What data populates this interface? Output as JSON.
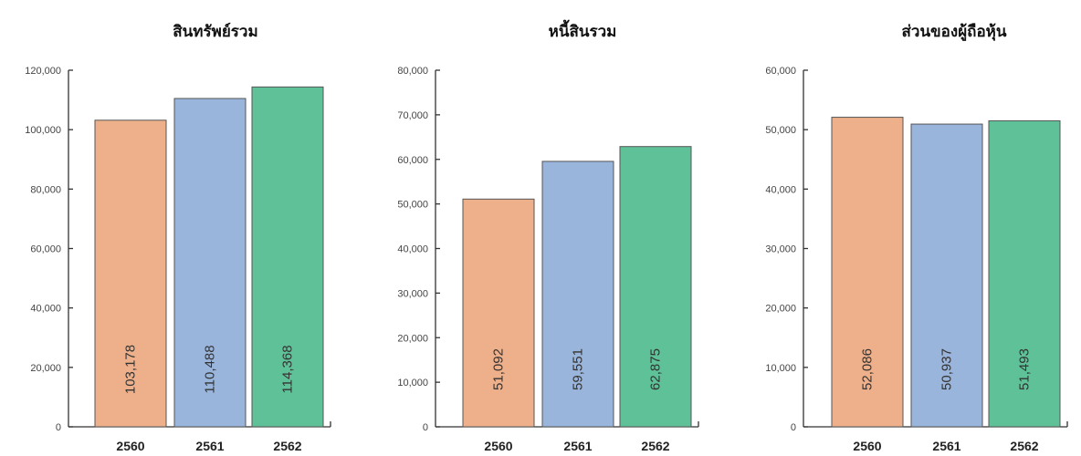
{
  "chart_data": [
    {
      "type": "bar",
      "title": "สินทรัพย์รวม",
      "categories": [
        "2560",
        "2561",
        "2562"
      ],
      "values": [
        103178,
        110488,
        114368
      ],
      "value_labels": [
        "103,178",
        "110,488",
        "114,368"
      ],
      "ylim": [
        0,
        120000
      ],
      "yticks": [
        0,
        20000,
        40000,
        60000,
        80000,
        100000,
        120000
      ],
      "ytick_labels": [
        "0",
        "20,000",
        "40,000",
        "60,000",
        "80,000",
        "100,000",
        "120,000"
      ],
      "bar_colors": [
        "#eeb08b",
        "#9ab5db",
        "#5fc197"
      ],
      "grid": false
    },
    {
      "type": "bar",
      "title": "หนี้สินรวม",
      "categories": [
        "2560",
        "2561",
        "2562"
      ],
      "values": [
        51092,
        59551,
        62875
      ],
      "value_labels": [
        "51,092",
        "59,551",
        "62,875"
      ],
      "ylim": [
        0,
        80000
      ],
      "yticks": [
        0,
        10000,
        20000,
        30000,
        40000,
        50000,
        60000,
        70000,
        80000
      ],
      "ytick_labels": [
        "0",
        "10,000",
        "20,000",
        "30,000",
        "40,000",
        "50,000",
        "60,000",
        "70,000",
        "80,000"
      ],
      "bar_colors": [
        "#eeb08b",
        "#9ab5db",
        "#5fc197"
      ],
      "grid": false
    },
    {
      "type": "bar",
      "title": "ส่วนของผู้ถือหุ้น",
      "categories": [
        "2560",
        "2561",
        "2562"
      ],
      "values": [
        52086,
        50937,
        51493
      ],
      "value_labels": [
        "52,086",
        "50,937",
        "51,493"
      ],
      "ylim": [
        0,
        60000
      ],
      "yticks": [
        0,
        10000,
        20000,
        30000,
        40000,
        50000,
        60000
      ],
      "ytick_labels": [
        "0",
        "10,000",
        "20,000",
        "30,000",
        "40,000",
        "50,000",
        "60,000"
      ],
      "bar_colors": [
        "#eeb08b",
        "#9ab5db",
        "#5fc197"
      ],
      "grid": false
    }
  ]
}
